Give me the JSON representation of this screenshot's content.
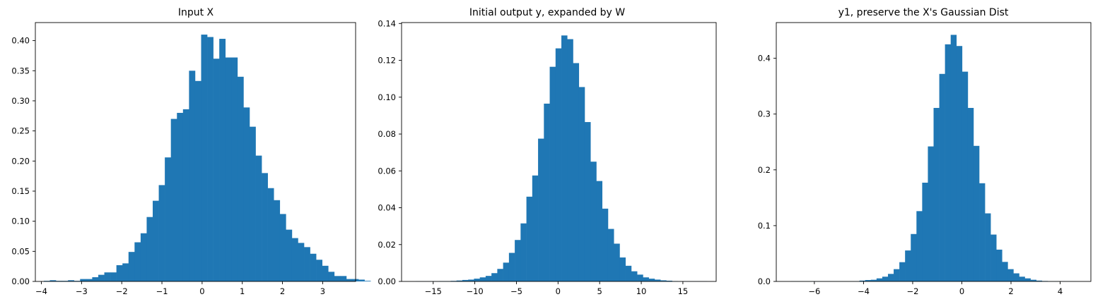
{
  "chart_data": [
    {
      "type": "bar",
      "title": "Input X",
      "xlabel": "",
      "ylabel": "",
      "xlim": [
        -4.15,
        3.82
      ],
      "ylim": [
        0,
        0.43
      ],
      "bar_color": "#1f77b4",
      "xticks": [
        -4,
        -3,
        -2,
        -1,
        0,
        1,
        2,
        3
      ],
      "xtick_labels": [
        "−4",
        "−3",
        "−2",
        "−1",
        "0",
        "1",
        "2",
        "3"
      ],
      "yticks": [
        0,
        0.05,
        0.1,
        0.15,
        0.2,
        0.25,
        0.3,
        0.35,
        0.4
      ],
      "ytick_labels": [
        "0.00",
        "0.05",
        "0.10",
        "0.15",
        "0.20",
        "0.25",
        "0.30",
        "0.35",
        "0.40"
      ],
      "bin_start": -3.94,
      "bin_width": 0.1506,
      "values": [
        0.001,
        0.002,
        0.001,
        0.001,
        0.002,
        0.001,
        0.004,
        0.004,
        0.007,
        0.011,
        0.015,
        0.015,
        0.027,
        0.03,
        0.049,
        0.065,
        0.08,
        0.107,
        0.134,
        0.16,
        0.206,
        0.27,
        0.28,
        0.286,
        0.35,
        0.333,
        0.41,
        0.406,
        0.37,
        0.403,
        0.372,
        0.372,
        0.34,
        0.289,
        0.257,
        0.209,
        0.18,
        0.155,
        0.135,
        0.112,
        0.086,
        0.072,
        0.064,
        0.057,
        0.046,
        0.036,
        0.026,
        0.016,
        0.009,
        0.009,
        0.004,
        0.004,
        0.003,
        0.001
      ]
    },
    {
      "type": "bar",
      "title": "Initial output y, expanded by W",
      "xlabel": "",
      "ylabel": "",
      "xlim": [
        -18.8,
        19.0
      ],
      "ylim": [
        0,
        0.1405
      ],
      "bar_color": "#1f77b4",
      "xticks": [
        -15,
        -10,
        -5,
        0,
        5,
        10,
        15
      ],
      "xtick_labels": [
        "−15",
        "−10",
        "−5",
        "0",
        "5",
        "10",
        "15"
      ],
      "yticks": [
        0,
        0.02,
        0.04,
        0.06,
        0.08,
        0.1,
        0.12,
        0.14
      ],
      "ytick_labels": [
        "0.00",
        "0.02",
        "0.04",
        "0.06",
        "0.08",
        "0.10",
        "0.12",
        "0.14"
      ],
      "bin_start": -17.1,
      "bin_width": 0.7,
      "values": [
        0.0001,
        0.0001,
        0.0001,
        0.0001,
        0.0002,
        0.0002,
        0.0003,
        0.0005,
        0.0008,
        0.001,
        0.0015,
        0.0022,
        0.003,
        0.0045,
        0.0068,
        0.0102,
        0.0155,
        0.0225,
        0.0315,
        0.046,
        0.0575,
        0.0775,
        0.0965,
        0.1165,
        0.1265,
        0.1335,
        0.1315,
        0.1185,
        0.1055,
        0.0865,
        0.065,
        0.0545,
        0.0395,
        0.0285,
        0.0205,
        0.013,
        0.0085,
        0.0055,
        0.0037,
        0.0022,
        0.0015,
        0.001,
        0.0006,
        0.0004,
        0.0002,
        0.0001,
        0.0001,
        0.0001,
        0.0001,
        0.0001
      ]
    },
    {
      "type": "bar",
      "title": "y1, preserve the X's Gaussian Dist",
      "xlabel": "",
      "ylabel": "",
      "xlim": [
        -7.55,
        5.25
      ],
      "ylim": [
        0,
        0.464
      ],
      "bar_color": "#1f77b4",
      "xticks": [
        -6,
        -4,
        -2,
        0,
        2,
        4
      ],
      "xtick_labels": [
        "−6",
        "−4",
        "−2",
        "0",
        "2",
        "4"
      ],
      "yticks": [
        0,
        0.1,
        0.2,
        0.3,
        0.4
      ],
      "ytick_labels": [
        "0.0",
        "0.1",
        "0.2",
        "0.3",
        "0.4"
      ],
      "bin_start": -6.95,
      "bin_width": 0.232,
      "values": [
        0.0003,
        0.0003,
        0.0003,
        0.0003,
        0.0003,
        0.0003,
        0.0003,
        0.0003,
        0.0003,
        0.0003,
        0.0003,
        0.0003,
        0.0015,
        0.0025,
        0.003,
        0.0055,
        0.0085,
        0.0135,
        0.022,
        0.0345,
        0.0555,
        0.085,
        0.126,
        0.177,
        0.242,
        0.311,
        0.372,
        0.425,
        0.442,
        0.422,
        0.376,
        0.311,
        0.243,
        0.176,
        0.122,
        0.084,
        0.057,
        0.035,
        0.022,
        0.0145,
        0.0085,
        0.0055,
        0.003,
        0.0015,
        0.0008,
        0.0003,
        0.0003,
        0.0002,
        0.0001,
        0.0001
      ]
    }
  ]
}
